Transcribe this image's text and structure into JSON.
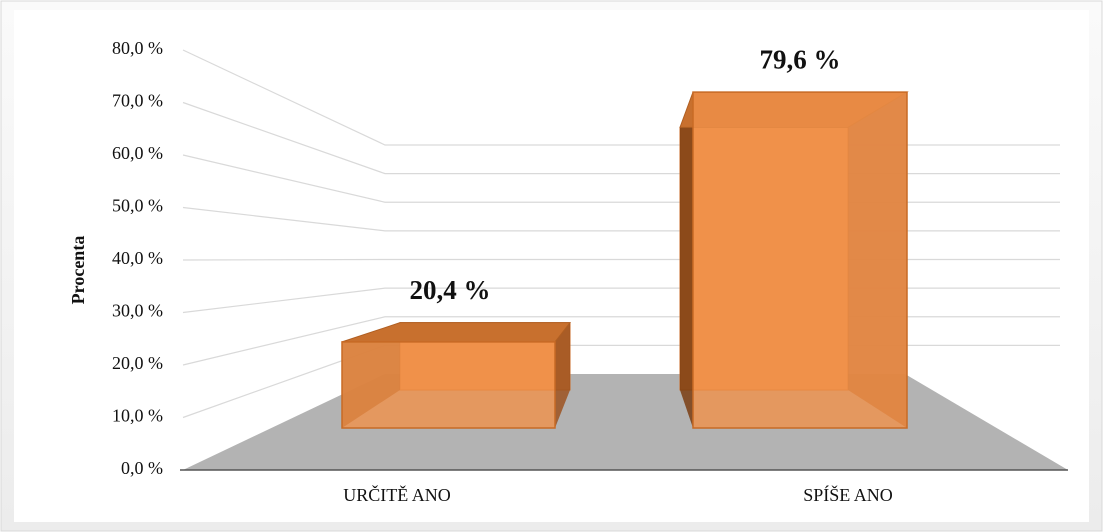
{
  "chart_data": {
    "type": "bar3d",
    "y_label": "Procenta",
    "categories": [
      "URČITĚ ANO",
      "SPÍŠE ANO"
    ],
    "values": [
      20.4,
      79.6
    ],
    "value_labels": [
      "20,4 %",
      "79,6 %"
    ],
    "color": "#f0914a",
    "ylim": [
      0,
      80
    ],
    "yticks": [
      {
        "value": 0,
        "label": "0,0 %"
      },
      {
        "value": 10,
        "label": "10,0 %"
      },
      {
        "value": 20,
        "label": "20,0 %"
      },
      {
        "value": 30,
        "label": "30,0 %"
      },
      {
        "value": 40,
        "label": "40,0 %"
      },
      {
        "value": 50,
        "label": "50,0 %"
      },
      {
        "value": 60,
        "label": "60,0 %"
      },
      {
        "value": 70,
        "label": "70,0 %"
      },
      {
        "value": 80,
        "label": "80,0 %"
      }
    ],
    "grid": true
  }
}
